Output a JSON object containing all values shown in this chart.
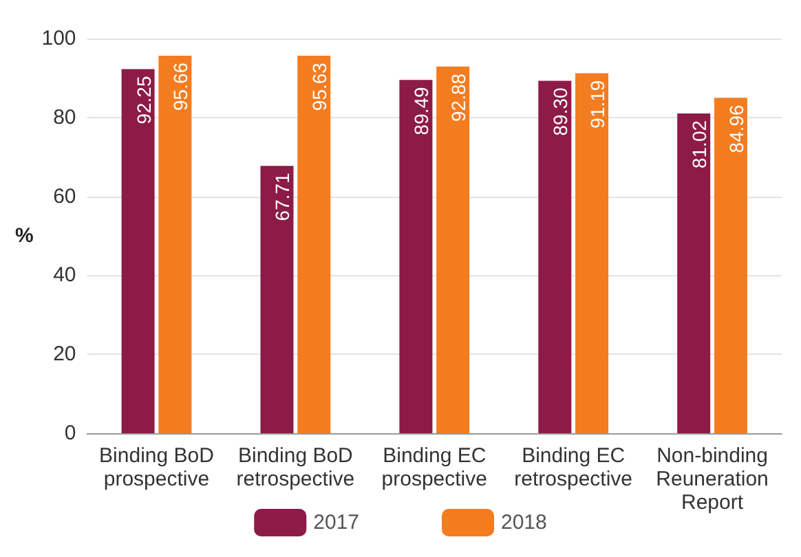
{
  "chart_data": {
    "type": "bar",
    "ylabel": "%",
    "categories": [
      "Binding BoD\nprospective",
      "Binding BoD\nretrospective",
      "Binding EC\nprospective",
      "Binding EC\nretrospective",
      "Non-binding\nReuneration\nReport"
    ],
    "series": [
      {
        "name": "2017",
        "color": "#8c1b47",
        "values": [
          92.25,
          67.71,
          89.49,
          89.3,
          81.02
        ],
        "value_labels": [
          "92.25",
          "67.71",
          "89.49",
          "89.30",
          "81.02"
        ]
      },
      {
        "name": "2018",
        "color": "#f47c20",
        "values": [
          95.66,
          95.63,
          92.88,
          91.19,
          84.96
        ],
        "value_labels": [
          "95.66",
          "95.63",
          "92.88",
          "91.19",
          "84.96"
        ]
      }
    ],
    "ylim": [
      0,
      100
    ],
    "yticks": [
      0,
      20,
      40,
      60,
      80,
      100
    ],
    "grid": "y",
    "legend": "bottom"
  }
}
